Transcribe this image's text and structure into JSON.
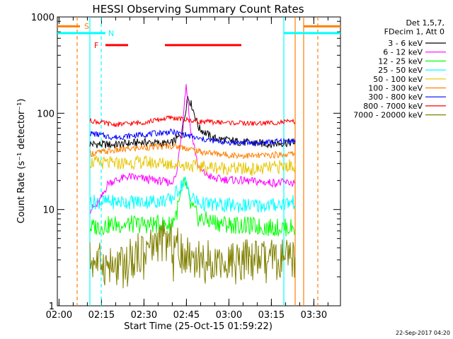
{
  "chart_data": {
    "type": "line",
    "title": "HESSI Observing Summary Count Rates",
    "xlabel": "Start Time (25-Oct-15 01:59:22)",
    "ylabel": "Count Rate (s⁻¹ detector⁻¹)",
    "y_scale": "log",
    "xlim": [
      0,
      100
    ],
    "ylim": [
      1,
      1000
    ],
    "x_ticks": [
      {
        "t": 0.6,
        "label": "02:00"
      },
      {
        "t": 15.6,
        "label": "02:15"
      },
      {
        "t": 30.6,
        "label": "02:30"
      },
      {
        "t": 45.6,
        "label": "02:45"
      },
      {
        "t": 60.6,
        "label": "03:00"
      },
      {
        "t": 75.6,
        "label": "03:15"
      },
      {
        "t": 90.6,
        "label": "03:30"
      }
    ],
    "y_ticks": [
      {
        "v": 1,
        "label": "1"
      },
      {
        "v": 10,
        "label": "10"
      },
      {
        "v": 100,
        "label": "100"
      },
      {
        "v": 1000,
        "label": "1000"
      }
    ],
    "legend_header": [
      "Det 1,5,7,",
      "FDecim 1, Att 0"
    ],
    "legend_position": "right",
    "flags": [
      {
        "label": "S",
        "color": "#ff7f00",
        "segments": [
          [
            0,
            8
          ],
          [
            87,
            100
          ]
        ]
      },
      {
        "label": "N",
        "color": "#00ffff",
        "segments": [
          [
            0,
            17
          ],
          [
            80,
            100
          ]
        ]
      },
      {
        "label": "F",
        "color": "#ff0000",
        "segments": [
          [
            17,
            25
          ],
          [
            38,
            65
          ]
        ]
      }
    ],
    "vlines": [
      {
        "t": 7,
        "color": "#ff7f00",
        "dashed": true
      },
      {
        "t": 11.5,
        "color": "#00ffff",
        "dashed": false
      },
      {
        "t": 15.5,
        "color": "#00ffff",
        "dashed": true
      },
      {
        "t": 80,
        "color": "#00ffff",
        "dashed": false
      },
      {
        "t": 84,
        "color": "#ff7f00",
        "dashed": false
      },
      {
        "t": 87,
        "color": "#ff7f00",
        "dashed": false
      },
      {
        "t": 92,
        "color": "#ff7f00",
        "dashed": true
      }
    ],
    "series": [
      {
        "name": "3 - 6 keV",
        "color": "#000000",
        "x": [
          11.5,
          20,
          30,
          40,
          44,
          46,
          47.5,
          50,
          55,
          65,
          75,
          84
        ],
        "y": [
          48,
          47,
          50,
          48,
          60,
          150,
          120,
          70,
          55,
          50,
          48,
          50
        ]
      },
      {
        "name": "6 - 12 keV",
        "color": "#ff00ff",
        "x": [
          11.5,
          14,
          16,
          18,
          25,
          35,
          40,
          42,
          44,
          45.5,
          47,
          50,
          55,
          65,
          75,
          84
        ],
        "y": [
          10,
          11,
          14,
          19,
          22,
          20,
          19,
          22,
          70,
          200,
          70,
          26,
          21,
          20,
          19,
          19
        ]
      },
      {
        "name": "12 - 25 keV",
        "color": "#00ff00",
        "x": [
          11.5,
          20,
          30,
          40,
          42,
          44,
          45,
          47,
          50,
          60,
          75,
          84
        ],
        "y": [
          6.5,
          7,
          7,
          7,
          9,
          15,
          20,
          11,
          8,
          7,
          6.5,
          6.5
        ]
      },
      {
        "name": "25 - 50 keV",
        "color": "#00ffff",
        "x": [
          11.5,
          20,
          30,
          40,
          44,
          45,
          47,
          50,
          60,
          75,
          84
        ],
        "y": [
          12,
          12,
          12,
          12.5,
          18,
          20,
          14,
          11.5,
          11,
          11,
          12
        ]
      },
      {
        "name": "50 - 100 keV",
        "color": "#e6c600",
        "x": [
          11.5,
          20,
          30,
          40,
          45,
          50,
          60,
          70,
          84
        ],
        "y": [
          31,
          30,
          31,
          30,
          29,
          28,
          27,
          26,
          29
        ]
      },
      {
        "name": "100 - 300 keV",
        "color": "#ff7f00",
        "x": [
          11.5,
          20,
          30,
          40,
          45,
          50,
          60,
          70,
          84
        ],
        "y": [
          38,
          41,
          44,
          46,
          44,
          40,
          37,
          36,
          38
        ]
      },
      {
        "name": "300 - 800 keV",
        "color": "#0000ff",
        "x": [
          11.5,
          20,
          30,
          40,
          45,
          50,
          60,
          70,
          84
        ],
        "y": [
          62,
          56,
          60,
          64,
          60,
          54,
          50,
          49,
          52
        ]
      },
      {
        "name": "800 - 7000 keV",
        "color": "#ff0000",
        "x": [
          11.5,
          20,
          30,
          40,
          45,
          50,
          60,
          70,
          84
        ],
        "y": [
          84,
          76,
          80,
          90,
          86,
          82,
          80,
          78,
          82
        ]
      },
      {
        "name": "7000 - 20000 keV",
        "color": "#808000",
        "x": [
          11.5,
          20,
          25,
          30,
          36,
          42,
          45,
          50,
          60,
          70,
          80,
          84
        ],
        "y": [
          3,
          2.5,
          3,
          3.8,
          4.8,
          4.3,
          3.6,
          3,
          3,
          3,
          3,
          3
        ]
      }
    ]
  },
  "timestamp": "22-Sep-2017 04:20"
}
